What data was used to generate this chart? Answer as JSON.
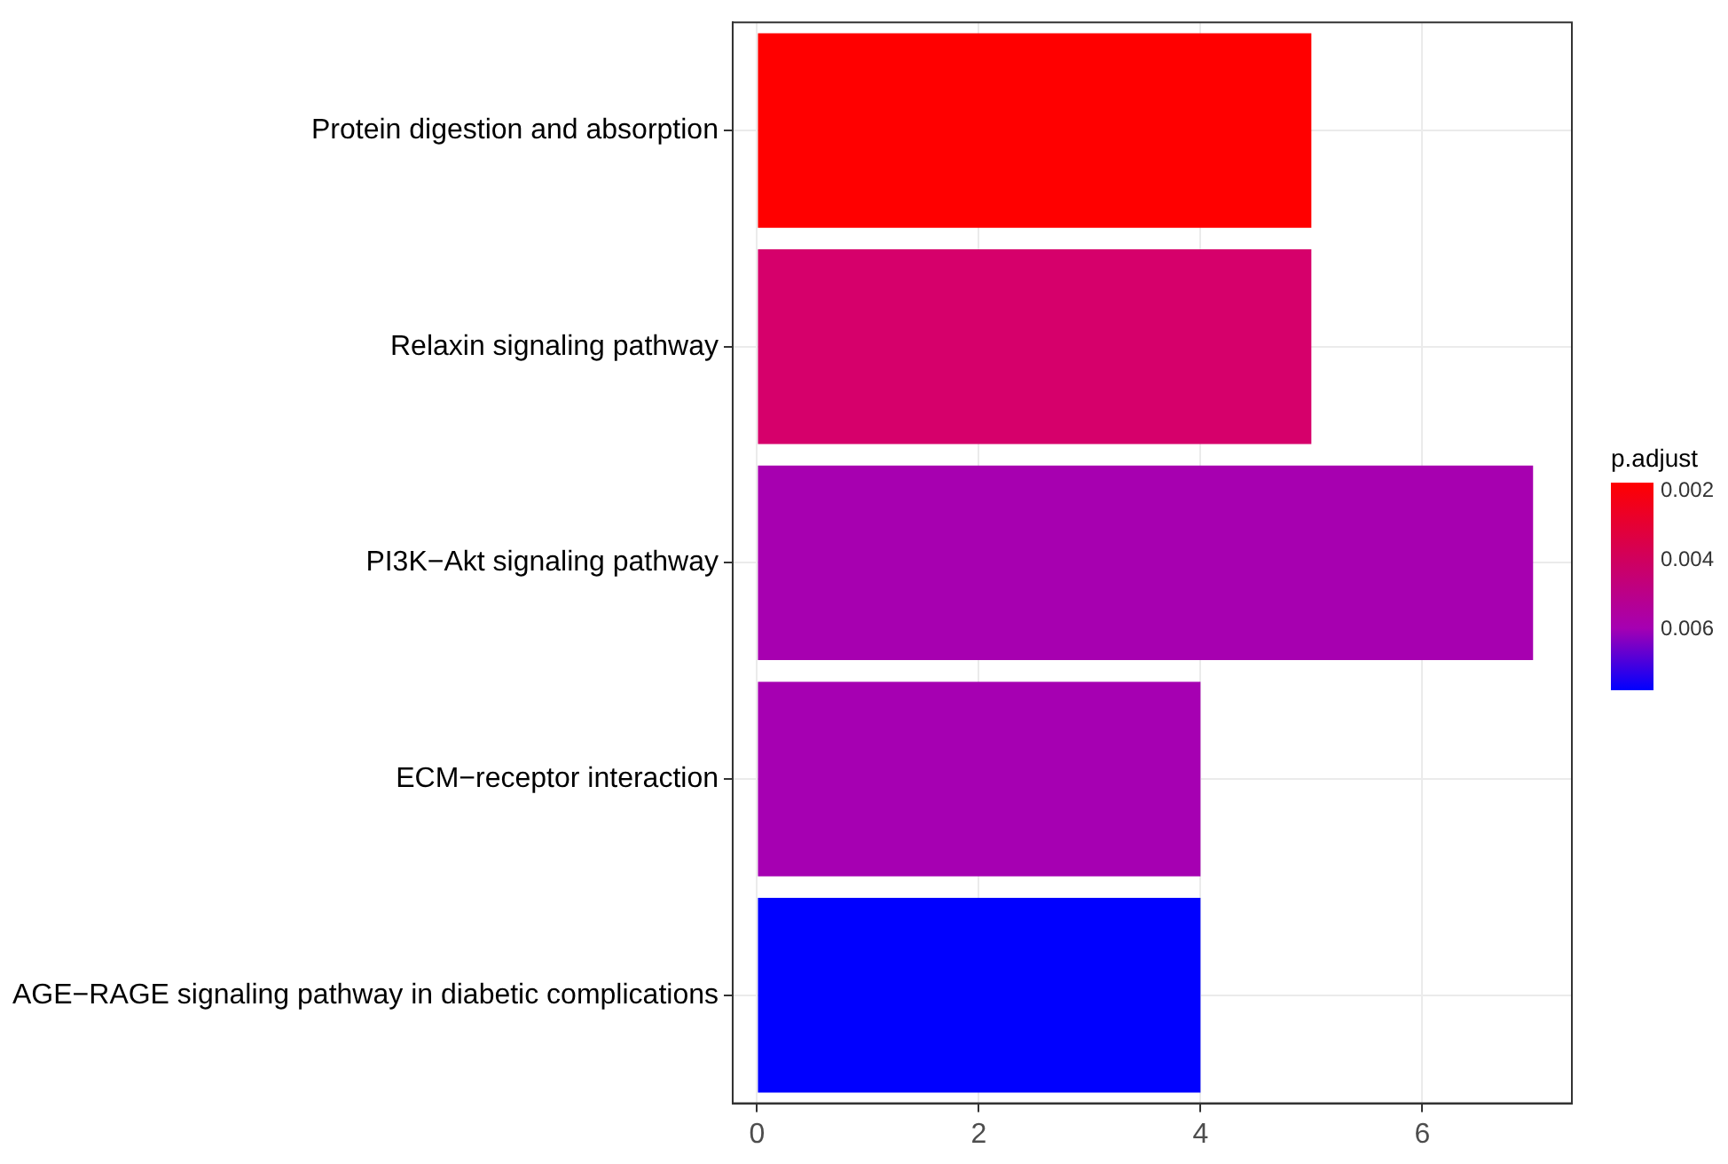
{
  "chart_data": {
    "type": "bar",
    "orientation": "horizontal",
    "categories": [
      "Protein digestion and absorption",
      "Relaxin signaling pathway",
      "PI3K−Akt signaling pathway",
      "ECM−receptor interaction",
      "AGE−RAGE signaling pathway in diabetic complications"
    ],
    "values": [
      5,
      5,
      7,
      4,
      4
    ],
    "colors": [
      "#ff0000",
      "#d6006b",
      "#a700b0",
      "#a600b2",
      "#0000ff"
    ],
    "xlim": [
      -0.22,
      7.35
    ],
    "xticks": [
      0,
      2,
      4,
      6
    ],
    "grid": true,
    "legend": false,
    "clabel": "p.adjust",
    "clim": [
      0.0018,
      0.0078
    ],
    "cticks": [
      0.002,
      0.004,
      0.006
    ]
  }
}
